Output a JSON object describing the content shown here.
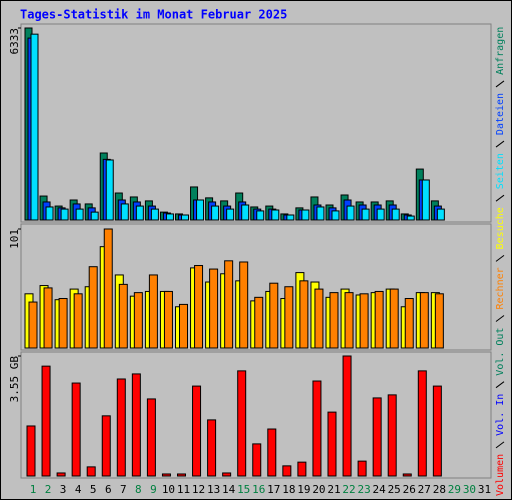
{
  "chart_data": [
    {
      "type": "bar",
      "title": "Tages-Statistik im Monat Februar 2025",
      "ylim": [
        0,
        6333
      ],
      "yticks": [
        6333
      ],
      "series": [
        {
          "name": "Anfragen",
          "color": "#00805c",
          "values": [
            6333,
            790,
            460,
            660,
            530,
            2210,
            890,
            760,
            630,
            260,
            200,
            1090,
            730,
            630,
            890,
            430,
            460,
            200,
            400,
            760,
            495,
            825,
            595,
            595,
            630,
            200,
            1680,
            630,
            null,
            null,
            null
          ]
        },
        {
          "name": "Dateien",
          "color": "#0040ff",
          "values": [
            6000,
            595,
            400,
            530,
            400,
            2000,
            660,
            595,
            460,
            230,
            165,
            660,
            595,
            460,
            595,
            360,
            360,
            165,
            330,
            495,
            400,
            660,
            495,
            495,
            495,
            165,
            1320,
            460,
            null,
            null,
            null
          ]
        },
        {
          "name": "Seiten",
          "color": "#00e0ff",
          "values": [
            6130,
            430,
            360,
            360,
            260,
            1980,
            530,
            460,
            360,
            200,
            165,
            660,
            460,
            360,
            495,
            300,
            330,
            165,
            330,
            430,
            300,
            460,
            360,
            360,
            360,
            130,
            1320,
            360,
            null,
            null,
            null
          ]
        }
      ]
    },
    {
      "type": "bar",
      "ylim": [
        0,
        101
      ],
      "yticks": [
        101
      ],
      "series": [
        {
          "name": "Besuche",
          "color": "#ffff00",
          "values": [
            46,
            53,
            41,
            50,
            52,
            86,
            62,
            44,
            48,
            48,
            35,
            68,
            56,
            63,
            57,
            40,
            48,
            42,
            64,
            56,
            43,
            50,
            45,
            47,
            50,
            35,
            47,
            47,
            null,
            null,
            null
          ]
        },
        {
          "name": "Rechner",
          "color": "#ff8000",
          "values": [
            39,
            51,
            42,
            46,
            69,
            101,
            54,
            47,
            62,
            48,
            37,
            70,
            67,
            74,
            73,
            43,
            55,
            52,
            57,
            50,
            47,
            47,
            46,
            48,
            50,
            42,
            47,
            46,
            null,
            null,
            null
          ]
        }
      ]
    },
    {
      "type": "bar",
      "categories": [
        "1",
        "2",
        "3",
        "4",
        "5",
        "6",
        "7",
        "8",
        "9",
        "10",
        "11",
        "12",
        "13",
        "14",
        "15",
        "16",
        "17",
        "18",
        "19",
        "20",
        "21",
        "22",
        "23",
        "24",
        "25",
        "26",
        "27",
        "28",
        "29",
        "30",
        "31"
      ],
      "category_colors": [
        "#008040",
        "#008040",
        "#000000",
        "#000000",
        "#000000",
        "#000000",
        "#000000",
        "#008040",
        "#008040",
        "#000000",
        "#000000",
        "#000000",
        "#000000",
        "#000000",
        "#008040",
        "#008040",
        "#000000",
        "#000000",
        "#000000",
        "#000000",
        "#000000",
        "#008040",
        "#008040",
        "#000000",
        "#000000",
        "#000000",
        "#000000",
        "#000000",
        "#008040",
        "#008040",
        "#000000"
      ],
      "ylim": [
        0,
        3.55
      ],
      "yticks": [
        {
          "value": 3.55,
          "label": "3.55 GB"
        }
      ],
      "series": [
        {
          "name": "Vol. Out",
          "color": "#00805c",
          "values": [
            null,
            null,
            null,
            null,
            null,
            null,
            null,
            null,
            null,
            null,
            null,
            null,
            null,
            null,
            null,
            null,
            null,
            null,
            null,
            null,
            null,
            null,
            null,
            null,
            null,
            null,
            null,
            null,
            null,
            null,
            null
          ]
        },
        {
          "name": "Vol. In",
          "color": "#0000ff",
          "values": [
            null,
            null,
            null,
            null,
            null,
            null,
            null,
            null,
            null,
            null,
            null,
            null,
            null,
            null,
            null,
            null,
            null,
            null,
            null,
            null,
            null,
            null,
            null,
            null,
            null,
            null,
            null,
            null,
            null,
            null,
            null
          ]
        },
        {
          "name": "Volumen",
          "color": "#ff0000",
          "values": [
            1.48,
            3.25,
            0.09,
            2.75,
            0.27,
            1.78,
            2.87,
            3.02,
            2.28,
            0.06,
            0.06,
            2.66,
            1.66,
            0.09,
            3.11,
            0.95,
            1.39,
            0.3,
            0.41,
            2.81,
            1.89,
            3.55,
            0.44,
            2.31,
            2.4,
            0.06,
            3.11,
            2.66,
            null,
            null,
            null
          ]
        }
      ]
    }
  ]
}
